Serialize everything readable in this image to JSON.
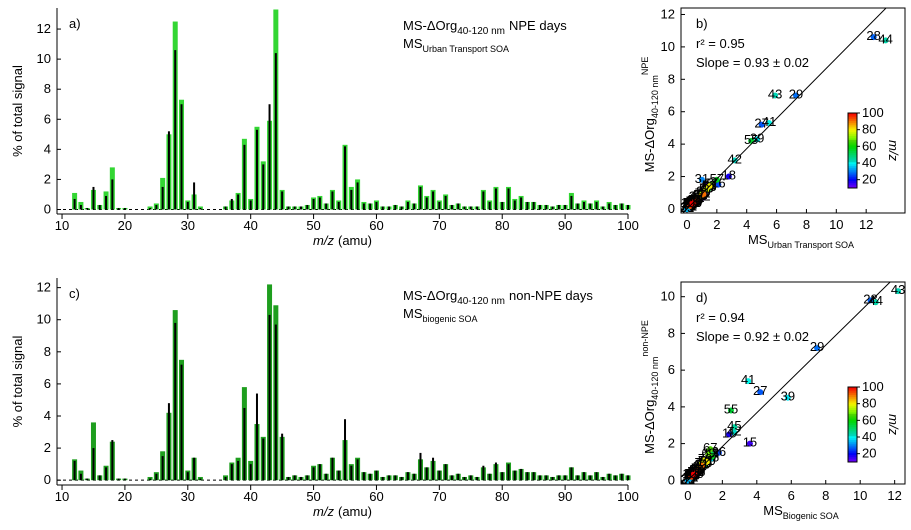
{
  "chart_data": [
    {
      "type": "bar",
      "panel_label": "a)",
      "x": [
        12,
        13,
        14,
        15,
        16,
        17,
        18,
        19,
        20,
        21,
        22,
        23,
        24,
        25,
        26,
        27,
        28,
        29,
        30,
        31,
        32,
        33,
        34,
        35,
        36,
        37,
        38,
        39,
        40,
        41,
        42,
        43,
        44,
        45,
        46,
        47,
        48,
        49,
        50,
        51,
        52,
        53,
        54,
        55,
        56,
        57,
        58,
        59,
        60,
        61,
        62,
        63,
        64,
        65,
        66,
        67,
        68,
        69,
        70,
        71,
        72,
        73,
        74,
        75,
        76,
        77,
        78,
        79,
        80,
        81,
        82,
        83,
        84,
        85,
        86,
        87,
        88,
        89,
        90,
        91,
        92,
        93,
        94,
        95,
        96,
        97,
        98,
        99,
        100
      ],
      "xlim": [
        9.2,
        100
      ],
      "xticks": [
        10,
        20,
        30,
        40,
        50,
        60,
        70,
        80,
        90,
        100
      ],
      "xlabel": "m/z",
      "xlabel_unit": "(amu)",
      "ylabel": "% of total signal",
      "ylim": [
        -0.3,
        13.4
      ],
      "yticks": [
        0,
        2,
        4,
        6,
        8,
        10,
        12
      ],
      "series": [
        {
          "name": "MS-ΔOrg",
          "name_sub": "40-120 nm",
          "name_tail": "NPE days",
          "color": "#000000",
          "values": [
            0.7,
            0.3,
            0.1,
            1.5,
            0.3,
            0.9,
            2.0,
            0.1,
            0.1,
            0,
            0,
            0,
            0.1,
            0.3,
            1.5,
            5.2,
            10.6,
            7.0,
            0.5,
            1.8,
            0.1,
            0,
            0,
            0,
            0.2,
            0.7,
            1.0,
            4.3,
            0.6,
            5.3,
            3.0,
            7.0,
            10.4,
            1.2,
            0.2,
            0.2,
            0.2,
            0.3,
            0.7,
            0.8,
            0.4,
            1.2,
            0.5,
            4.2,
            1.3,
            1.8,
            0.4,
            0.4,
            0.5,
            0.2,
            0.2,
            0.3,
            0.2,
            0.5,
            0.4,
            1.5,
            0.8,
            1.2,
            0.5,
            0.9,
            0.3,
            0.4,
            0.2,
            0.2,
            0.2,
            1.2,
            0.5,
            1.4,
            0.5,
            1.4,
            0.6,
            0.8,
            0.5,
            0.5,
            0.3,
            0.3,
            0.2,
            0.3,
            0.3,
            0.9,
            0.4,
            0.5,
            0.4,
            0.5,
            0.2,
            0.4,
            0.3,
            0.4,
            0.3
          ]
        },
        {
          "name": "MS",
          "name_sub": "Urban Transport SOA",
          "color": "#33d633",
          "values": [
            1.1,
            0.5,
            0.1,
            1.3,
            0.3,
            1.2,
            2.8,
            0.1,
            0.1,
            0,
            0,
            0,
            0.2,
            0.4,
            2.1,
            5.0,
            12.5,
            7.3,
            0.6,
            1.0,
            0.2,
            0,
            0,
            0,
            0.2,
            0.6,
            1.1,
            4.7,
            0.7,
            5.5,
            3.2,
            5.9,
            13.3,
            1.3,
            0.2,
            0.2,
            0.2,
            0.3,
            0.8,
            0.9,
            0.4,
            1.3,
            0.6,
            4.3,
            1.5,
            2.0,
            0.5,
            0.4,
            0.6,
            0.2,
            0.2,
            0.3,
            0.2,
            0.6,
            0.4,
            1.6,
            0.9,
            1.3,
            0.6,
            1.0,
            0.3,
            0.4,
            0.2,
            0.2,
            0.2,
            1.3,
            0.6,
            1.5,
            0.5,
            1.5,
            0.7,
            0.9,
            0.5,
            0.5,
            0.3,
            0.3,
            0.2,
            0.3,
            0.3,
            1.1,
            0.4,
            0.6,
            0.4,
            0.6,
            0.2,
            0.5,
            0.3,
            0.4,
            0.3
          ]
        }
      ]
    },
    {
      "type": "scatter",
      "panel_label": "b)",
      "xlabel": "MS",
      "xlabel_sub": "Urban Transport SOA",
      "ylabel": "MS-ΔOrg",
      "ylabel_sub": "40-120 nm",
      "ylabel_sup": "NPE",
      "stats": [
        "r² = 0.95",
        "Slope = 0.93 ± 0.02"
      ],
      "fit_slope": 0.93,
      "xlim": [
        -0.4,
        14.6
      ],
      "xticks": [
        0,
        2,
        4,
        6,
        8,
        10,
        12
      ],
      "ylim": [
        -0.25,
        12.4
      ],
      "yticks": [
        0,
        2,
        4,
        6,
        8,
        10,
        12
      ],
      "clim": [
        10,
        100
      ],
      "cticks": [
        20,
        40,
        60,
        80,
        100
      ],
      "clabel": "m/z"
    },
    {
      "type": "bar",
      "panel_label": "c)",
      "x": [
        12,
        13,
        14,
        15,
        16,
        17,
        18,
        19,
        20,
        21,
        22,
        23,
        24,
        25,
        26,
        27,
        28,
        29,
        30,
        31,
        32,
        33,
        34,
        35,
        36,
        37,
        38,
        39,
        40,
        41,
        42,
        43,
        44,
        45,
        46,
        47,
        48,
        49,
        50,
        51,
        52,
        53,
        54,
        55,
        56,
        57,
        58,
        59,
        60,
        61,
        62,
        63,
        64,
        65,
        66,
        67,
        68,
        69,
        70,
        71,
        72,
        73,
        74,
        75,
        76,
        77,
        78,
        79,
        80,
        81,
        82,
        83,
        84,
        85,
        86,
        87,
        88,
        89,
        90,
        91,
        92,
        93,
        94,
        95,
        96,
        97,
        98,
        99,
        100
      ],
      "xlim": [
        9.2,
        100
      ],
      "xticks": [
        10,
        20,
        30,
        40,
        50,
        60,
        70,
        80,
        90,
        100
      ],
      "xlabel": "m/z",
      "xlabel_unit": "(amu)",
      "ylabel": "% of total signal",
      "ylim": [
        -0.3,
        12.6
      ],
      "yticks": [
        0,
        2,
        4,
        6,
        8,
        10,
        12
      ],
      "series": [
        {
          "name": "MS-ΔOrg",
          "name_sub": "40-120 nm",
          "name_tail": "non-NPE days",
          "color": "#000000",
          "values": [
            1.2,
            0.4,
            0.1,
            2.0,
            0.3,
            0.8,
            2.5,
            0.1,
            0.1,
            0,
            0,
            0,
            0.1,
            0.4,
            1.5,
            4.8,
            9.8,
            7.2,
            0.5,
            1.4,
            0.1,
            0,
            0,
            0,
            0.2,
            1.0,
            1.2,
            4.5,
            1.0,
            5.4,
            2.6,
            10.3,
            9.7,
            2.9,
            0.2,
            0.3,
            0.2,
            0.3,
            0.8,
            1.0,
            0.4,
            1.4,
            0.6,
            3.8,
            0.9,
            1.3,
            0.5,
            0.4,
            0.6,
            0.2,
            0.3,
            0.3,
            0.2,
            0.5,
            0.4,
            1.7,
            0.8,
            1.4,
            0.6,
            1.0,
            0.3,
            0.4,
            0.2,
            0.3,
            0.2,
            0.9,
            0.4,
            1.1,
            0.5,
            1.0,
            0.6,
            0.7,
            0.5,
            0.5,
            0.3,
            0.3,
            0.2,
            0.3,
            0.3,
            0.8,
            0.3,
            0.5,
            0.3,
            0.5,
            0.2,
            0.4,
            0.3,
            0.4,
            0.3
          ]
        },
        {
          "name": "MS",
          "name_sub": "biogenic SOA",
          "color": "#1e9e1e",
          "values": [
            1.3,
            0.6,
            0.1,
            3.6,
            0.3,
            0.9,
            2.4,
            0.1,
            0.1,
            0,
            0,
            0,
            0.2,
            0.5,
            1.8,
            4.2,
            10.6,
            7.5,
            0.6,
            1.4,
            0.2,
            0,
            0,
            0,
            0.3,
            1.1,
            1.4,
            5.8,
            1.2,
            3.5,
            2.7,
            12.2,
            10.9,
            2.7,
            0.2,
            0.3,
            0.2,
            0.3,
            0.9,
            1.0,
            0.4,
            1.4,
            0.6,
            2.5,
            1.0,
            1.4,
            0.5,
            0.4,
            0.6,
            0.2,
            0.3,
            0.3,
            0.2,
            0.5,
            0.4,
            1.3,
            0.8,
            1.2,
            0.6,
            1.0,
            0.3,
            0.4,
            0.2,
            0.3,
            0.2,
            0.8,
            0.4,
            1.0,
            0.5,
            1.1,
            0.6,
            0.7,
            0.5,
            0.5,
            0.3,
            0.3,
            0.2,
            0.3,
            0.3,
            0.8,
            0.3,
            0.5,
            0.3,
            0.5,
            0.2,
            0.4,
            0.3,
            0.4,
            0.3
          ]
        }
      ]
    },
    {
      "type": "scatter",
      "panel_label": "d)",
      "xlabel": "MS",
      "xlabel_sub": "Biogenic SOA",
      "ylabel": "MS-ΔOrg",
      "ylabel_sub": "40-120 nm",
      "ylabel_sup": "non-NPE",
      "stats": [
        "r² = 0.94",
        "Slope = 0.92 ± 0.02"
      ],
      "fit_slope": 0.92,
      "xlim": [
        -0.4,
        12.6
      ],
      "xticks": [
        0,
        2,
        4,
        6,
        8,
        10,
        12
      ],
      "ylim": [
        -0.2,
        10.8
      ],
      "yticks": [
        0,
        2,
        4,
        6,
        8,
        10
      ],
      "clim": [
        10,
        100
      ],
      "cticks": [
        20,
        40,
        60,
        80,
        100
      ],
      "clabel": "m/z"
    }
  ]
}
